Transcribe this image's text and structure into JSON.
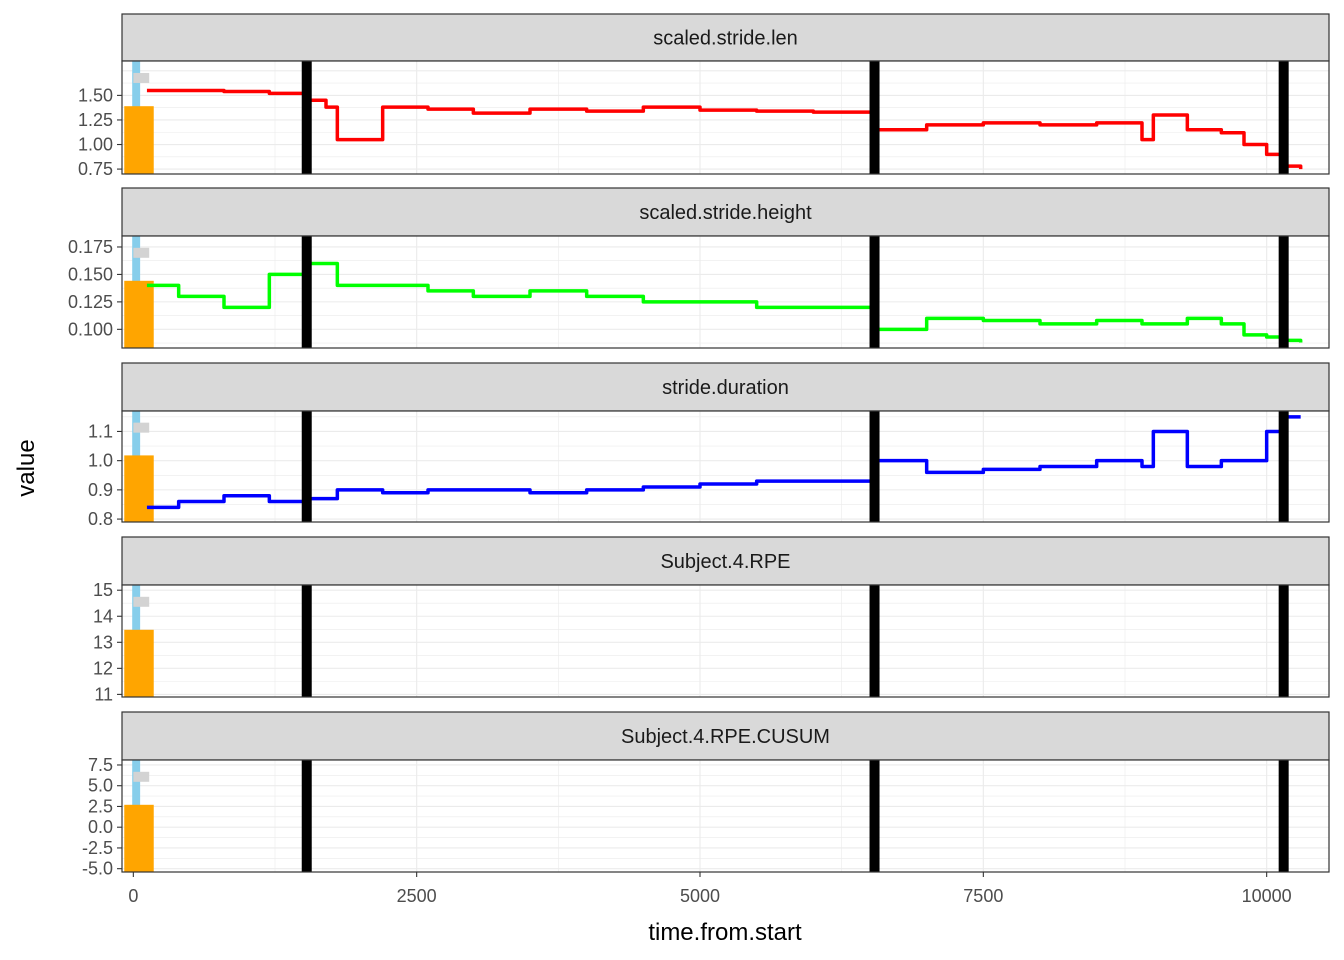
{
  "chart_data": {
    "type": "line",
    "xlabel": "time.from.start",
    "ylabel": "value",
    "xlim": [
      -100,
      10550
    ],
    "x_ticks": [
      0,
      2500,
      5000,
      7500,
      10000
    ],
    "x_tick_labels": [
      "0",
      "2500",
      "5000",
      "7500",
      "10000"
    ],
    "grid": true,
    "legend": "none",
    "changepoints": [
      1530,
      6540,
      10150
    ],
    "changepoint_color": "#000000",
    "overlay_bars": [
      {
        "color": "#87ceeb",
        "x": [
          -10,
          60
        ],
        "fill": "full"
      },
      {
        "color": "#ffa500",
        "x": [
          -80,
          180
        ],
        "fill_fraction": 0.6
      },
      {
        "color": "#d3d3d3",
        "x": [
          0,
          140
        ],
        "level_fraction": 0.85
      }
    ],
    "panels": [
      {
        "strip": "scaled.stride.len",
        "color": "#ff0000",
        "ylim": [
          0.7,
          1.85
        ],
        "y_ticks": [
          0.75,
          1.0,
          1.25,
          1.5
        ],
        "y_tick_labels": [
          "0.75",
          "1.00",
          "1.25",
          "1.50"
        ],
        "x": [
          120,
          400,
          800,
          1200,
          1530,
          1700,
          1800,
          2200,
          2600,
          3000,
          3500,
          4000,
          4500,
          5000,
          5500,
          6000,
          6540,
          6560,
          7000,
          7500,
          8000,
          8500,
          8900,
          9000,
          9300,
          9600,
          9800,
          10000,
          10150,
          10300
        ],
        "values": [
          1.55,
          1.55,
          1.54,
          1.52,
          1.45,
          1.38,
          1.05,
          1.38,
          1.36,
          1.32,
          1.36,
          1.34,
          1.38,
          1.35,
          1.34,
          1.33,
          1.28,
          1.15,
          1.2,
          1.22,
          1.2,
          1.22,
          1.05,
          1.3,
          1.15,
          1.12,
          1.0,
          0.9,
          0.78,
          0.75
        ]
      },
      {
        "strip": "scaled.stride.height",
        "color": "#00ff00",
        "ylim": [
          0.083,
          0.185
        ],
        "y_ticks": [
          0.1,
          0.125,
          0.15,
          0.175
        ],
        "y_tick_labels": [
          "0.100",
          "0.125",
          "0.150",
          "0.175"
        ],
        "x": [
          120,
          400,
          800,
          1200,
          1530,
          1800,
          2200,
          2600,
          3000,
          3500,
          4000,
          4500,
          5000,
          5500,
          6000,
          6540,
          6560,
          7000,
          7500,
          8000,
          8500,
          8900,
          9000,
          9300,
          9600,
          9800,
          10000,
          10150,
          10300
        ],
        "values": [
          0.14,
          0.13,
          0.12,
          0.15,
          0.16,
          0.14,
          0.14,
          0.135,
          0.13,
          0.135,
          0.13,
          0.125,
          0.125,
          0.12,
          0.12,
          0.115,
          0.1,
          0.11,
          0.108,
          0.105,
          0.108,
          0.105,
          0.105,
          0.11,
          0.105,
          0.095,
          0.093,
          0.09,
          0.088
        ]
      },
      {
        "strip": "stride.duration",
        "color": "#0000ff",
        "ylim": [
          0.79,
          1.17
        ],
        "y_ticks": [
          0.8,
          0.9,
          1.0,
          1.1
        ],
        "y_tick_labels": [
          "0.8",
          "0.9",
          "1.0",
          "1.1"
        ],
        "x": [
          120,
          400,
          800,
          1200,
          1530,
          1800,
          2200,
          2600,
          3000,
          3500,
          4000,
          4500,
          5000,
          5500,
          6000,
          6540,
          6560,
          7000,
          7500,
          8000,
          8500,
          8900,
          9000,
          9300,
          9600,
          9800,
          10000,
          10150,
          10300
        ],
        "values": [
          0.84,
          0.86,
          0.88,
          0.86,
          0.87,
          0.9,
          0.89,
          0.9,
          0.9,
          0.89,
          0.9,
          0.91,
          0.92,
          0.93,
          0.93,
          0.94,
          1.0,
          0.96,
          0.97,
          0.98,
          1.0,
          0.98,
          1.1,
          0.98,
          1.0,
          1.0,
          1.1,
          1.15,
          1.15
        ]
      },
      {
        "strip": "Subject.4.RPE",
        "color": "#000000",
        "ylim": [
          10.9,
          15.2
        ],
        "y_ticks": [
          11,
          12,
          13,
          14,
          15
        ],
        "y_tick_labels": [
          "11",
          "12",
          "13",
          "14",
          "15"
        ],
        "x": [],
        "values": []
      },
      {
        "strip": "Subject.4.RPE.CUSUM",
        "color": "#000000",
        "ylim": [
          -5.4,
          8.1
        ],
        "y_ticks": [
          -5.0,
          -2.5,
          0.0,
          2.5,
          5.0,
          7.5
        ],
        "y_tick_labels": [
          "-5.0",
          "-2.5",
          "0.0",
          "2.5",
          "5.0",
          "7.5"
        ],
        "x": [],
        "values": []
      }
    ]
  }
}
